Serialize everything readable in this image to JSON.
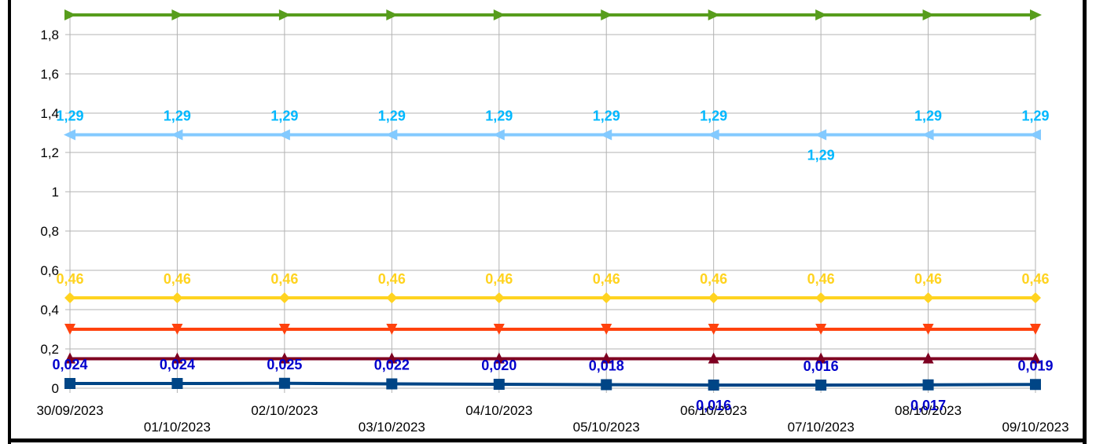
{
  "chart_data": {
    "type": "line",
    "title": "",
    "xlabel": "",
    "ylabel": "",
    "ylim": [
      0,
      1.9
    ],
    "yticks": [
      "0",
      "0,2",
      "0,4",
      "0,6",
      "0,8",
      "1",
      "1,2",
      "1,4",
      "1,6",
      "1,8"
    ],
    "ytick_values": [
      0,
      0.2,
      0.4,
      0.6,
      0.8,
      1.0,
      1.2,
      1.4,
      1.6,
      1.8
    ],
    "grid": true,
    "legend": "none",
    "categories": [
      "30/09/2023",
      "01/10/2023",
      "02/10/2023",
      "03/10/2023",
      "04/10/2023",
      "05/10/2023",
      "06/10/2023",
      "07/10/2023",
      "08/10/2023",
      "09/10/2023"
    ],
    "series": [
      {
        "color": "#579d1c",
        "marker": "triangle-right",
        "values": [
          1.9,
          1.9,
          1.9,
          1.9,
          1.9,
          1.9,
          1.9,
          1.9,
          1.9,
          1.9
        ],
        "labels": []
      },
      {
        "color": "#83caff",
        "label_color": "#00b8ff",
        "marker": "triangle-left",
        "values": [
          1.29,
          1.29,
          1.29,
          1.29,
          1.29,
          1.29,
          1.29,
          1.29,
          1.29,
          1.29
        ],
        "labels": [
          "1,29",
          "1,29",
          "1,29",
          "1,29",
          "1,29",
          "1,29",
          "1,29",
          "1,29",
          "1,29",
          "1,29"
        ],
        "label_pos": [
          "above",
          "above",
          "above",
          "above",
          "above",
          "above",
          "above",
          "below",
          "above",
          "above"
        ]
      },
      {
        "color": "#ffd320",
        "label_color": "#ffd320",
        "marker": "diamond",
        "values": [
          0.46,
          0.46,
          0.46,
          0.46,
          0.46,
          0.46,
          0.46,
          0.46,
          0.46,
          0.46
        ],
        "labels": [
          "0,46",
          "0,46",
          "0,46",
          "0,46",
          "0,46",
          "0,46",
          "0,46",
          "0,46",
          "0,46",
          "0,46"
        ],
        "label_pos": [
          "above",
          "above",
          "above",
          "above",
          "above",
          "above",
          "above",
          "above",
          "above",
          "above"
        ]
      },
      {
        "color": "#ff420e",
        "marker": "triangle-down",
        "values": [
          0.3,
          0.3,
          0.3,
          0.3,
          0.3,
          0.3,
          0.3,
          0.3,
          0.3,
          0.3
        ],
        "labels": []
      },
      {
        "color": "#7e0021",
        "marker": "triangle-up",
        "values": [
          0.15,
          0.15,
          0.15,
          0.15,
          0.15,
          0.15,
          0.15,
          0.15,
          0.15,
          0.15
        ],
        "labels": []
      },
      {
        "color": "#004586",
        "label_color": "#0000cc",
        "marker": "square",
        "values": [
          0.024,
          0.024,
          0.025,
          0.022,
          0.02,
          0.018,
          0.016,
          0.016,
          0.017,
          0.019
        ],
        "labels": [
          "0,024",
          "0,024",
          "0,025",
          "0,022",
          "0,020",
          "0,018",
          "0,016",
          "0,016",
          "0,017",
          "0,019"
        ],
        "label_pos": [
          "above",
          "above",
          "above",
          "above",
          "above",
          "above",
          "below",
          "above",
          "below",
          "above"
        ]
      }
    ]
  }
}
